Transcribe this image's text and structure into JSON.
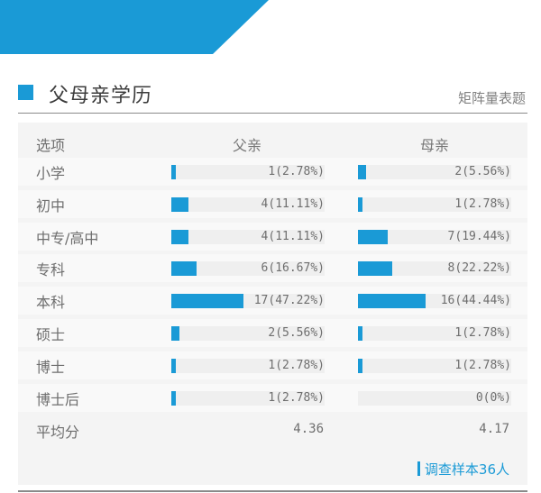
{
  "section": {
    "title": "父母亲学历",
    "question_type": "矩阵量表题"
  },
  "chart_data": {
    "type": "bar",
    "title": "父母亲学历",
    "header_label": "选项",
    "columns": [
      "父亲",
      "母亲"
    ],
    "max_count": 36,
    "rows": [
      {
        "label": "小学",
        "father": {
          "count": 1,
          "text": "1(2.78%)"
        },
        "mother": {
          "count": 2,
          "text": "2(5.56%)"
        }
      },
      {
        "label": "初中",
        "father": {
          "count": 4,
          "text": "4(11.11%)"
        },
        "mother": {
          "count": 1,
          "text": "1(2.78%)"
        }
      },
      {
        "label": "中专/高中",
        "father": {
          "count": 4,
          "text": "4(11.11%)"
        },
        "mother": {
          "count": 7,
          "text": "7(19.44%)"
        }
      },
      {
        "label": "专科",
        "father": {
          "count": 6,
          "text": "6(16.67%)"
        },
        "mother": {
          "count": 8,
          "text": "8(22.22%)"
        }
      },
      {
        "label": "本科",
        "father": {
          "count": 17,
          "text": "17(47.22%)"
        },
        "mother": {
          "count": 16,
          "text": "16(44.44%)"
        }
      },
      {
        "label": "硕士",
        "father": {
          "count": 2,
          "text": "2(5.56%)"
        },
        "mother": {
          "count": 1,
          "text": "1(2.78%)"
        }
      },
      {
        "label": "博士",
        "father": {
          "count": 1,
          "text": "1(2.78%)"
        },
        "mother": {
          "count": 1,
          "text": "1(2.78%)"
        }
      },
      {
        "label": "博士后",
        "father": {
          "count": 1,
          "text": "1(2.78%)"
        },
        "mother": {
          "count": 0,
          "text": "0(0%)"
        }
      }
    ],
    "average": {
      "label": "平均分",
      "father": "4.36",
      "mother": "4.17"
    },
    "bar_color": "#1a9ad6"
  },
  "footer": {
    "sample_note": "调查样本36人"
  },
  "colors": {
    "accent": "#1a9ad6",
    "banner": "#1a9ad6"
  }
}
